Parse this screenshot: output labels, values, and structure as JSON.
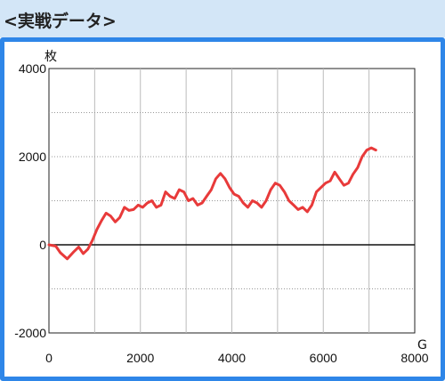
{
  "header": {
    "title": "<実戦データ>"
  },
  "colors": {
    "accent": "#2e86e8",
    "header_bg": "#d3e6f7",
    "series": "#e83a3a"
  },
  "chart_data": {
    "type": "line",
    "x_unit": "G",
    "y_unit": "枚",
    "xlim": [
      0,
      8000
    ],
    "ylim": [
      -2000,
      4000
    ],
    "x_ticks": [
      0,
      2000,
      4000,
      6000,
      8000
    ],
    "y_ticks": [
      4000,
      2000,
      0,
      -2000
    ],
    "x_tick_labels": [
      "0",
      "2000",
      "4000",
      "6000",
      "8000"
    ],
    "y_tick_labels": [
      "4000",
      "2000",
      "0",
      "-2000"
    ],
    "grid": true,
    "series": [
      {
        "x": [
          0,
          150,
          250,
          400,
          550,
          650,
          750,
          850,
          950,
          1050,
          1150,
          1250,
          1350,
          1450,
          1550,
          1650,
          1750,
          1850,
          1950,
          2050,
          2150,
          2250,
          2350,
          2450,
          2550,
          2650,
          2750,
          2850,
          2950,
          3050,
          3150,
          3250,
          3350,
          3450,
          3550,
          3650,
          3750,
          3850,
          3950,
          4050,
          4150,
          4250,
          4350,
          4450,
          4550,
          4650,
          4750,
          4850,
          4950,
          5050,
          5150,
          5250,
          5350,
          5450,
          5550,
          5650,
          5750,
          5850,
          5950,
          6050,
          6150,
          6250,
          6350,
          6450,
          6550,
          6650,
          6750,
          6850,
          6950,
          7050,
          7150
        ],
        "y": [
          0,
          -30,
          -180,
          -320,
          -150,
          -50,
          -200,
          -100,
          100,
          350,
          550,
          720,
          650,
          520,
          620,
          850,
          780,
          800,
          900,
          850,
          950,
          1000,
          850,
          900,
          1200,
          1100,
          1050,
          1250,
          1200,
          1000,
          1050,
          900,
          950,
          1100,
          1250,
          1500,
          1620,
          1500,
          1300,
          1150,
          1100,
          950,
          850,
          1000,
          950,
          850,
          1000,
          1250,
          1400,
          1350,
          1200,
          1000,
          900,
          800,
          850,
          750,
          900,
          1200,
          1300,
          1400,
          1450,
          1650,
          1500,
          1350,
          1400,
          1600,
          1750,
          2000,
          2150,
          2200,
          2150
        ]
      }
    ]
  }
}
